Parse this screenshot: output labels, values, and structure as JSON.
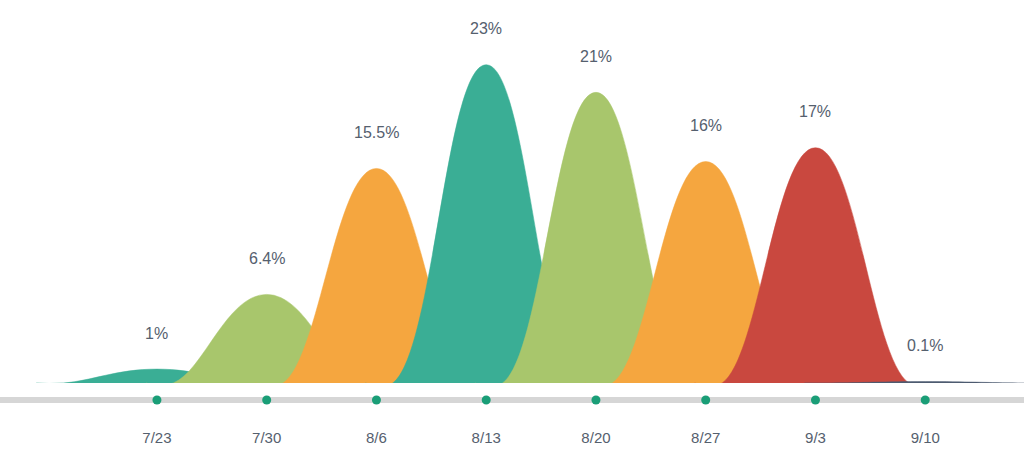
{
  "chart_data": {
    "type": "area",
    "categories": [
      "7/23",
      "7/30",
      "8/6",
      "8/13",
      "8/20",
      "8/27",
      "9/3",
      "9/10"
    ],
    "values": [
      1,
      6.4,
      15.5,
      23,
      21,
      16,
      17,
      0.1
    ],
    "value_labels": [
      "1%",
      "6.4%",
      "15.5%",
      "23%",
      "21%",
      "16%",
      "17%",
      "0.1%"
    ],
    "colors": [
      "#3aae95",
      "#a8c66c",
      "#f5a63f",
      "#3aae95",
      "#a8c66c",
      "#f5a63f",
      "#c9483f",
      "#4d5b70"
    ],
    "ylim": [
      0,
      25
    ],
    "data_labels": true,
    "tick_labels": "x",
    "grid": false
  }
}
